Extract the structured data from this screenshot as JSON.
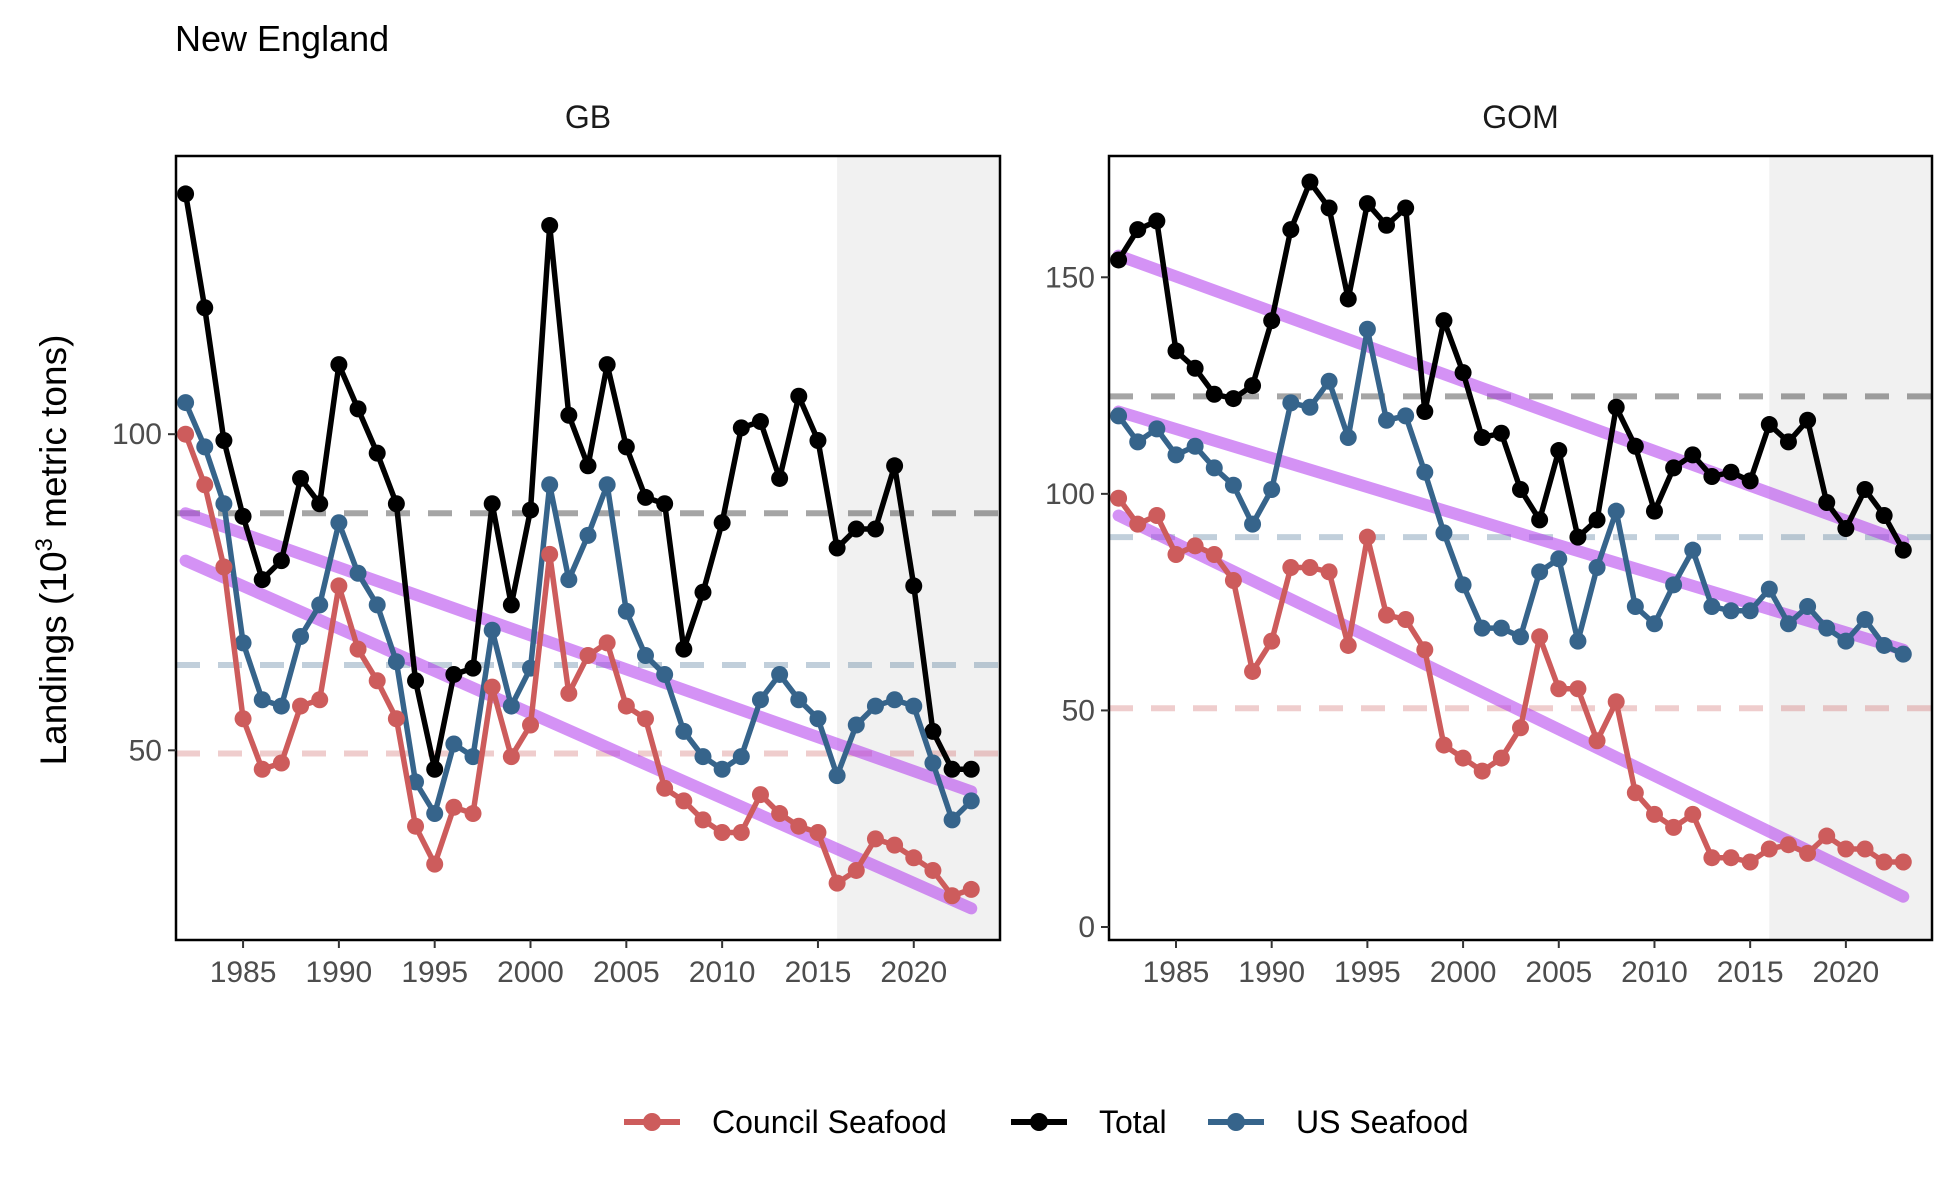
{
  "figure": {
    "title": "New England"
  },
  "y_axis_label": {
    "main": "Landings (10",
    "sup": "3",
    "rest": " metric tons)"
  },
  "colors": {
    "council": "#cd5c5c",
    "total": "#000000",
    "us": "#36648b",
    "trend": "#b23aee",
    "shade": "#ebebeb"
  },
  "legend": {
    "items": [
      {
        "label": "Council Seafood",
        "color": "#cd5c5c"
      },
      {
        "label": "Total",
        "color": "#000000"
      },
      {
        "label": "US Seafood",
        "color": "#36648b"
      }
    ]
  },
  "chart_data": [
    {
      "type": "line",
      "title": "GB",
      "x_range": [
        1981.5,
        2024.5
      ],
      "ylim": [
        20,
        144
      ],
      "x_ticks": [
        1985,
        1990,
        1995,
        2000,
        2005,
        2010,
        2015,
        2020
      ],
      "y_ticks": [
        50,
        100
      ],
      "shaded_x_range": [
        2016,
        2024.5
      ],
      "x": [
        1982,
        1983,
        1984,
        1985,
        1986,
        1987,
        1988,
        1989,
        1990,
        1991,
        1992,
        1993,
        1994,
        1995,
        1996,
        1997,
        1998,
        1999,
        2000,
        2001,
        2002,
        2003,
        2004,
        2005,
        2006,
        2007,
        2008,
        2009,
        2010,
        2011,
        2012,
        2013,
        2014,
        2015,
        2016,
        2017,
        2018,
        2019,
        2020,
        2021,
        2022,
        2023
      ],
      "series": [
        {
          "name": "Total",
          "color_key": "total",
          "values": [
            138,
            120,
            99,
            87,
            77,
            80,
            93,
            89,
            111,
            104,
            97,
            89,
            61,
            47,
            62,
            63,
            89,
            73,
            88,
            133,
            103,
            95,
            111,
            98,
            90,
            89,
            66,
            75,
            86,
            101,
            102,
            93,
            106,
            99,
            82,
            85,
            85,
            95,
            76,
            53,
            47,
            47
          ],
          "mean": 87.5,
          "trend": [
            87.5,
            43.5
          ]
        },
        {
          "name": "US Seafood",
          "color_key": "us",
          "values": [
            105,
            98,
            89,
            67,
            58,
            57,
            68,
            73,
            86,
            78,
            73,
            64,
            45,
            40,
            51,
            49,
            69,
            57,
            63,
            92,
            77,
            84,
            92,
            72,
            65,
            62,
            53,
            49,
            47,
            49,
            58,
            62,
            58,
            55,
            46,
            54,
            57,
            58,
            57,
            48,
            39,
            42
          ],
          "mean": 63.5,
          "trend": null
        },
        {
          "name": "Council Seafood",
          "color_key": "council",
          "values": [
            100,
            92,
            79,
            55,
            47,
            48,
            57,
            58,
            76,
            66,
            61,
            55,
            38,
            32,
            41,
            40,
            60,
            49,
            54,
            81,
            59,
            65,
            67,
            57,
            55,
            44,
            42,
            39,
            37,
            37,
            43,
            40,
            38,
            37,
            29,
            31,
            36,
            35,
            33,
            31,
            27,
            28
          ],
          "mean": 49.5,
          "trend": [
            80,
            25
          ]
        }
      ]
    },
    {
      "type": "line",
      "title": "GOM",
      "x_range": [
        1981.5,
        2024.5
      ],
      "ylim": [
        -3,
        178
      ],
      "x_ticks": [
        1985,
        1990,
        1995,
        2000,
        2005,
        2010,
        2015,
        2020
      ],
      "y_ticks": [
        0,
        50,
        100,
        150
      ],
      "shaded_x_range": [
        2016,
        2024.5
      ],
      "x": [
        1982,
        1983,
        1984,
        1985,
        1986,
        1987,
        1988,
        1989,
        1990,
        1991,
        1992,
        1993,
        1994,
        1995,
        1996,
        1997,
        1998,
        1999,
        2000,
        2001,
        2002,
        2003,
        2004,
        2005,
        2006,
        2007,
        2008,
        2009,
        2010,
        2011,
        2012,
        2013,
        2014,
        2015,
        2016,
        2017,
        2018,
        2019,
        2020,
        2021,
        2022,
        2023
      ],
      "series": [
        {
          "name": "Total",
          "color_key": "total",
          "values": [
            154,
            161,
            163,
            133,
            129,
            123,
            122,
            125,
            140,
            161,
            172,
            166,
            145,
            167,
            162,
            166,
            119,
            140,
            128,
            113,
            114,
            101,
            94,
            110,
            90,
            94,
            120,
            111,
            96,
            106,
            109,
            104,
            105,
            103,
            116,
            112,
            117,
            98,
            92,
            101,
            95,
            87
          ],
          "mean": 122.5,
          "trend": [
            155,
            89
          ]
        },
        {
          "name": "US Seafood",
          "color_key": "us",
          "values": [
            118,
            112,
            115,
            109,
            111,
            106,
            102,
            93,
            101,
            121,
            120,
            126,
            113,
            138,
            117,
            118,
            105,
            91,
            79,
            69,
            69,
            67,
            82,
            85,
            66,
            83,
            96,
            74,
            70,
            79,
            87,
            74,
            73,
            73,
            78,
            70,
            74,
            69,
            66,
            71,
            65,
            63
          ],
          "mean": 90,
          "trend": [
            119,
            64
          ]
        },
        {
          "name": "Council Seafood",
          "color_key": "council",
          "values": [
            99,
            93,
            95,
            86,
            88,
            86,
            80,
            59,
            66,
            83,
            83,
            82,
            65,
            90,
            72,
            71,
            64,
            42,
            39,
            36,
            39,
            46,
            67,
            55,
            55,
            43,
            52,
            31,
            26,
            23,
            26,
            16,
            16,
            15,
            18,
            19,
            17,
            21,
            18,
            18,
            15,
            15
          ],
          "mean": 50.5,
          "trend": [
            95,
            7
          ]
        }
      ]
    }
  ]
}
